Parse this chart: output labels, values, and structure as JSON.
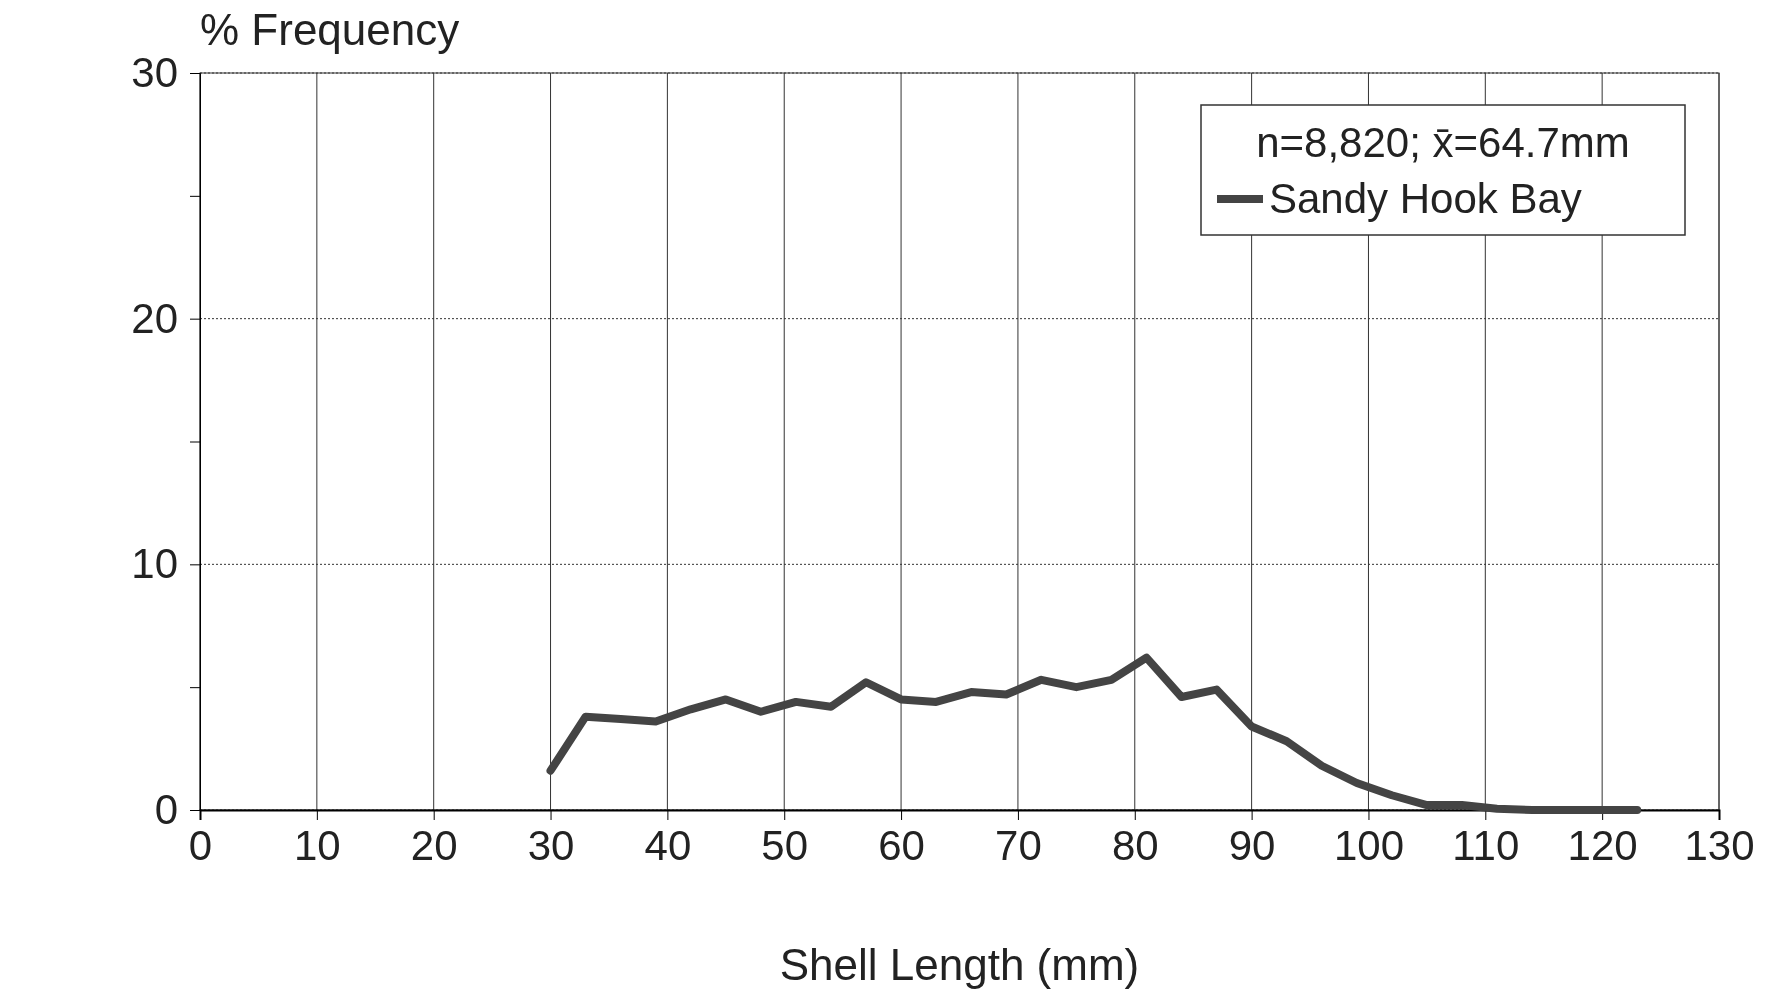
{
  "chart_data": {
    "type": "line",
    "xlabel": "Shell Length (mm)",
    "ylabel": "% Frequency",
    "legend_title": "n=8,820; x̄=64.7mm",
    "legend": "top right",
    "grid": true,
    "marker": "none",
    "line_style": "solid",
    "xlim": [
      0,
      130
    ],
    "xticks": [
      0,
      10,
      20,
      30,
      40,
      50,
      60,
      70,
      80,
      90,
      100,
      110,
      120,
      130
    ],
    "ylim": [
      0,
      30
    ],
    "yticks": [
      0,
      {
        "value": 5,
        "label": null
      },
      10,
      {
        "value": 15,
        "label": null
      },
      20,
      {
        "value": 25,
        "label": null
      },
      30
    ],
    "x": [
      30,
      33,
      36,
      39,
      42,
      45,
      48,
      51,
      54,
      57,
      60,
      63,
      66,
      69,
      72,
      75,
      78,
      81,
      84,
      87,
      90,
      93,
      96,
      99,
      102,
      105,
      108,
      111,
      114,
      117,
      120,
      123
    ],
    "series": [
      {
        "name": "Sandy Hook Bay",
        "color": "#444444",
        "values": [
          1.6,
          3.8,
          3.7,
          3.6,
          4.1,
          4.5,
          4.0,
          4.4,
          4.2,
          5.2,
          4.5,
          4.4,
          4.8,
          4.7,
          5.3,
          5.0,
          5.3,
          6.2,
          4.6,
          4.9,
          3.4,
          2.8,
          1.8,
          1.1,
          0.6,
          0.2,
          0.2,
          0.05,
          0,
          0,
          0,
          0
        ]
      }
    ]
  }
}
